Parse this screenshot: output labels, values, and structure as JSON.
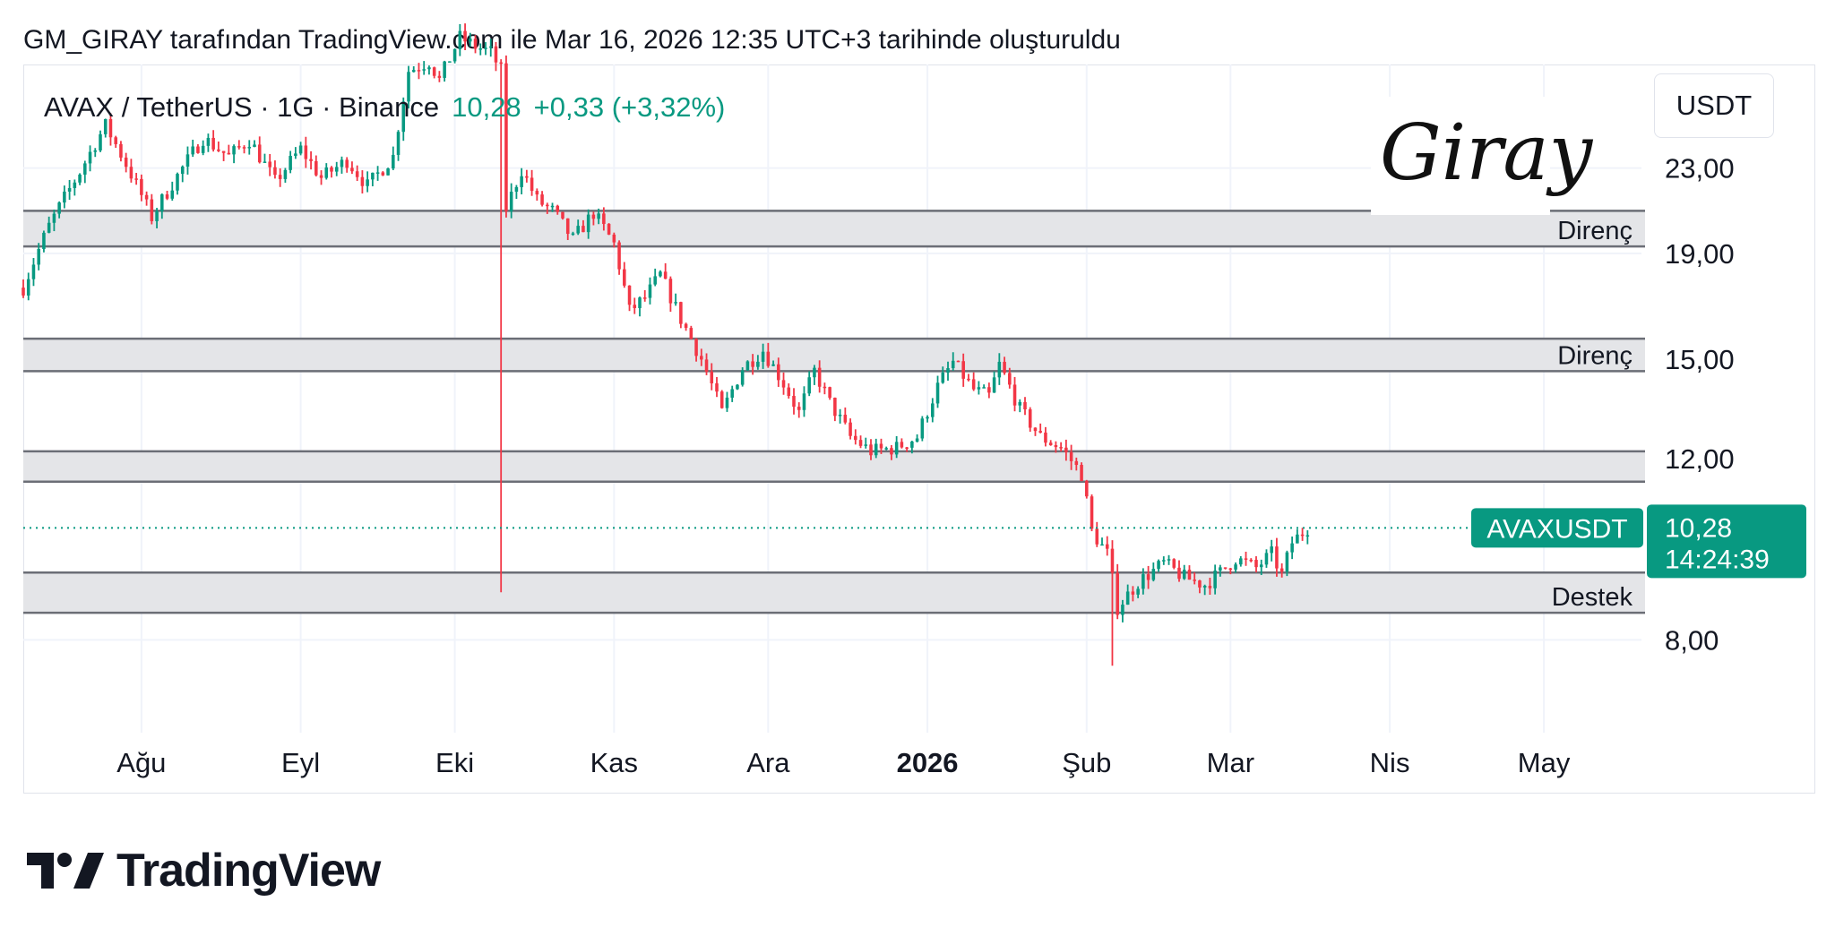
{
  "header": {
    "credit": "GM_GIRAY tarafından TradingView.com ile Mar 16, 2026 12:35 UTC+3 tarihinde oluşturuldu"
  },
  "legend": {
    "symbol": "AVAX / TetherUS · 1G · Binance",
    "price": "10,28",
    "change": "+0,33 (+3,32%)"
  },
  "currency": "USDT",
  "signature": "Giray",
  "footer": {
    "brand": "TradingView"
  },
  "colors": {
    "up": "#089981",
    "down": "#f23645",
    "zone_fill": "#e4e5e8",
    "zone_line": "#6b6e76",
    "grid": "#f0f3fa",
    "axis_text": "#131722"
  },
  "chart_data": {
    "type": "candlestick",
    "symbol": "AVAXUSDT",
    "y_scale": "log",
    "ylim": [
      6.5,
      29.0
    ],
    "y_ticks": [
      {
        "value": 23,
        "label": "23,00"
      },
      {
        "value": 19,
        "label": "19,00"
      },
      {
        "value": 15,
        "label": "15,00"
      },
      {
        "value": 12,
        "label": "12,00"
      },
      {
        "value": 8,
        "label": "8,00"
      }
    ],
    "x_range": [
      "2025-07-09",
      "2026-05-20"
    ],
    "x_ticks": [
      {
        "date": "2025-08-01",
        "label": "Ağu",
        "bold": false
      },
      {
        "date": "2025-09-01",
        "label": "Eyl",
        "bold": false
      },
      {
        "date": "2025-10-01",
        "label": "Eki",
        "bold": false
      },
      {
        "date": "2025-11-01",
        "label": "Kas",
        "bold": false
      },
      {
        "date": "2025-12-01",
        "label": "Ara",
        "bold": false
      },
      {
        "date": "2026-01-01",
        "label": "2026",
        "bold": true
      },
      {
        "date": "2026-02-01",
        "label": "Şub",
        "bold": false
      },
      {
        "date": "2026-03-01",
        "label": "Mar",
        "bold": false
      },
      {
        "date": "2026-04-01",
        "label": "Nis",
        "bold": false
      },
      {
        "date": "2026-05-01",
        "label": "May",
        "bold": false
      }
    ],
    "price_path": [
      [
        "2025-07-09",
        17.6
      ],
      [
        "2025-07-14",
        20.2
      ],
      [
        "2025-07-20",
        22.8
      ],
      [
        "2025-07-25",
        25.3
      ],
      [
        "2025-07-29",
        23.2
      ],
      [
        "2025-08-03",
        20.6
      ],
      [
        "2025-08-07",
        22.2
      ],
      [
        "2025-08-13",
        24.6
      ],
      [
        "2025-08-18",
        23.6
      ],
      [
        "2025-08-22",
        24.5
      ],
      [
        "2025-08-27",
        22.3
      ],
      [
        "2025-09-01",
        24.0
      ],
      [
        "2025-09-05",
        22.5
      ],
      [
        "2025-09-10",
        23.4
      ],
      [
        "2025-09-14",
        22.1
      ],
      [
        "2025-09-19",
        23.6
      ],
      [
        "2025-09-22",
        28.6
      ],
      [
        "2025-09-26",
        29.2
      ],
      [
        "2025-09-28",
        28.0
      ],
      [
        "2025-10-02",
        30.8
      ],
      [
        "2025-10-05",
        30.2
      ],
      [
        "2025-10-08",
        29.8
      ],
      [
        "2025-10-10",
        28.6
      ],
      [
        "2025-10-11",
        21.0
      ],
      [
        "2025-10-14",
        22.9
      ],
      [
        "2025-10-17",
        21.4
      ],
      [
        "2025-10-20",
        20.9
      ],
      [
        "2025-10-24",
        19.6
      ],
      [
        "2025-10-28",
        20.8
      ],
      [
        "2025-11-01",
        19.4
      ],
      [
        "2025-11-04",
        16.7
      ],
      [
        "2025-11-07",
        17.2
      ],
      [
        "2025-11-10",
        18.1
      ],
      [
        "2025-11-14",
        16.4
      ],
      [
        "2025-11-18",
        15.0
      ],
      [
        "2025-11-22",
        13.3
      ],
      [
        "2025-11-26",
        14.7
      ],
      [
        "2025-11-30",
        15.3
      ],
      [
        "2025-12-04",
        14.2
      ],
      [
        "2025-12-07",
        13.3
      ],
      [
        "2025-12-10",
        14.6
      ],
      [
        "2025-12-13",
        13.6
      ],
      [
        "2025-12-17",
        12.6
      ],
      [
        "2025-12-21",
        12.2
      ],
      [
        "2025-12-26",
        12.3
      ],
      [
        "2025-12-30",
        12.6
      ],
      [
        "2026-01-03",
        14.1
      ],
      [
        "2026-01-06",
        14.9
      ],
      [
        "2026-01-10",
        14.0
      ],
      [
        "2026-01-13",
        13.8
      ],
      [
        "2026-01-15",
        14.8
      ],
      [
        "2026-01-19",
        13.4
      ],
      [
        "2026-01-23",
        12.6
      ],
      [
        "2026-01-27",
        12.3
      ],
      [
        "2026-01-31",
        11.6
      ],
      [
        "2026-02-02",
        10.2
      ],
      [
        "2026-02-05",
        9.7
      ],
      [
        "2026-02-07",
        8.6
      ],
      [
        "2026-02-11",
        9.1
      ],
      [
        "2026-02-16",
        9.5
      ],
      [
        "2026-02-20",
        9.2
      ],
      [
        "2026-02-24",
        9.05
      ],
      [
        "2026-02-27",
        9.3
      ],
      [
        "2026-03-02",
        9.6
      ],
      [
        "2026-03-06",
        9.4
      ],
      [
        "2026-03-09",
        9.7
      ],
      [
        "2026-03-11",
        9.25
      ],
      [
        "2026-03-13",
        9.95
      ],
      [
        "2026-03-16",
        10.28
      ]
    ],
    "events": [
      {
        "date": "2025-10-10",
        "high": 28.8,
        "low": 8.9
      },
      {
        "date": "2026-02-06",
        "high": 10.0,
        "low": 7.55
      }
    ],
    "zones": [
      {
        "top": 20.9,
        "bottom": 19.3,
        "label": "Direnç"
      },
      {
        "top": 15.7,
        "bottom": 14.6,
        "label": "Direnç"
      },
      {
        "top": 12.2,
        "bottom": 11.4,
        "label": "",
        "label_visible": false
      },
      {
        "top": 9.3,
        "bottom": 8.5,
        "label": "Destek"
      }
    ],
    "last_price": {
      "value": 10.28,
      "label": "10,28",
      "countdown": "14:24:39",
      "tag": "AVAXUSDT"
    }
  }
}
